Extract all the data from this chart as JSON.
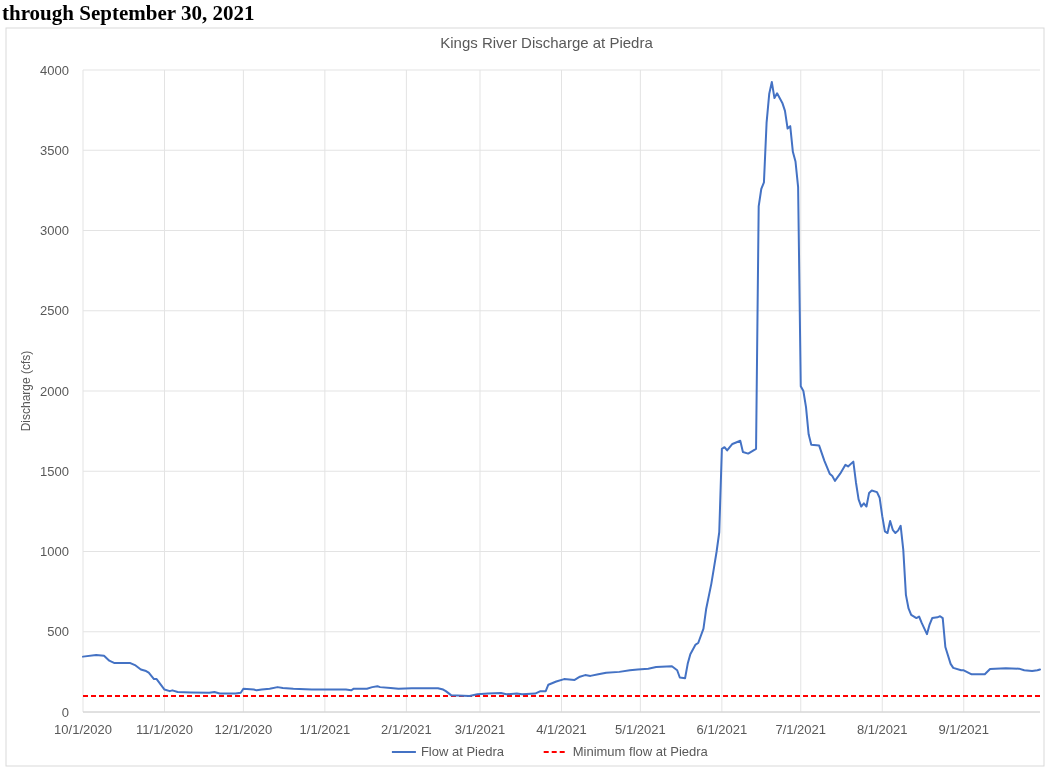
{
  "chart_data": {
    "type": "line",
    "title": "Kings River Discharge at Piedra",
    "ylabel": "Discharge (cfs)",
    "annotations": [
      "through September 30, 2021"
    ],
    "x": [
      "2020-10-01",
      "2020-10-06",
      "2020-10-09",
      "2020-10-11",
      "2020-10-13",
      "2020-10-19",
      "2020-10-21",
      "2020-10-23",
      "2020-10-25",
      "2020-10-26",
      "2020-10-28",
      "2020-10-29",
      "2020-11-01",
      "2020-11-03",
      "2020-11-04",
      "2020-11-06",
      "2020-11-11",
      "2020-11-18",
      "2020-11-20",
      "2020-11-22",
      "2020-11-28",
      "2020-11-30",
      "2020-12-01",
      "2020-12-05",
      "2020-12-06",
      "2020-12-08",
      "2020-12-11",
      "2020-12-14",
      "2020-12-16",
      "2020-12-20",
      "2020-12-27",
      "2021-01-09",
      "2021-01-11",
      "2021-01-12",
      "2021-01-17",
      "2021-01-19",
      "2021-01-21",
      "2021-01-22",
      "2021-01-26",
      "2021-01-29",
      "2021-02-03",
      "2021-02-13",
      "2021-02-15",
      "2021-02-16",
      "2021-02-18",
      "2021-02-25",
      "2021-02-28",
      "2021-03-04",
      "2021-03-09",
      "2021-03-11",
      "2021-03-15",
      "2021-03-17",
      "2021-03-22",
      "2021-03-24",
      "2021-03-26",
      "2021-03-27",
      "2021-03-30",
      "2021-04-02",
      "2021-04-06",
      "2021-04-08",
      "2021-04-10",
      "2021-04-12",
      "2021-04-15",
      "2021-04-18",
      "2021-04-23",
      "2021-04-27",
      "2021-04-30",
      "2021-05-04",
      "2021-05-07",
      "2021-05-13",
      "2021-05-15",
      "2021-05-16",
      "2021-05-18",
      "2021-05-19",
      "2021-05-20",
      "2021-05-22",
      "2021-05-23",
      "2021-05-25",
      "2021-05-26",
      "2021-05-28",
      "2021-05-29",
      "2021-05-30",
      "2021-05-31",
      "2021-06-01",
      "2021-06-02",
      "2021-06-03",
      "2021-06-05",
      "2021-06-08",
      "2021-06-09",
      "2021-06-11",
      "2021-06-14",
      "2021-06-15",
      "2021-06-16",
      "2021-06-17",
      "2021-06-18",
      "2021-06-19",
      "2021-06-20",
      "2021-06-21",
      "2021-06-22",
      "2021-06-24",
      "2021-06-25",
      "2021-06-26",
      "2021-06-27",
      "2021-06-28",
      "2021-06-29",
      "2021-06-30",
      "2021-07-01",
      "2021-07-02",
      "2021-07-03",
      "2021-07-04",
      "2021-07-05",
      "2021-07-08",
      "2021-07-10",
      "2021-07-12",
      "2021-07-13",
      "2021-07-14",
      "2021-07-16",
      "2021-07-18",
      "2021-07-19",
      "2021-07-21",
      "2021-07-22",
      "2021-07-23",
      "2021-07-24",
      "2021-07-25",
      "2021-07-26",
      "2021-07-27",
      "2021-07-28",
      "2021-07-30",
      "2021-07-31",
      "2021-08-01",
      "2021-08-02",
      "2021-08-03",
      "2021-08-04",
      "2021-08-05",
      "2021-08-06",
      "2021-08-07",
      "2021-08-08",
      "2021-08-09",
      "2021-08-10",
      "2021-08-11",
      "2021-08-12",
      "2021-08-14",
      "2021-08-15",
      "2021-08-16",
      "2021-08-18",
      "2021-08-19",
      "2021-08-20",
      "2021-08-22",
      "2021-08-23",
      "2021-08-24",
      "2021-08-25",
      "2021-08-27",
      "2021-08-28",
      "2021-08-31",
      "2021-09-01",
      "2021-09-04",
      "2021-09-09",
      "2021-09-11",
      "2021-09-17",
      "2021-09-22",
      "2021-09-24",
      "2021-09-27",
      "2021-09-29",
      "2021-09-30"
    ],
    "series": [
      {
        "name": "Flow at Piedra",
        "color": "#4472c4",
        "values": [
          345,
          355,
          350,
          320,
          305,
          305,
          290,
          265,
          255,
          245,
          205,
          205,
          140,
          130,
          135,
          125,
          122,
          120,
          125,
          115,
          115,
          120,
          145,
          140,
          135,
          140,
          145,
          155,
          150,
          145,
          140,
          140,
          135,
          145,
          145,
          155,
          160,
          155,
          150,
          145,
          148,
          148,
          140,
          130,
          105,
          100,
          110,
          115,
          118,
          110,
          115,
          110,
          115,
          130,
          130,
          170,
          190,
          205,
          200,
          220,
          230,
          225,
          235,
          245,
          250,
          260,
          265,
          270,
          280,
          285,
          260,
          215,
          210,
          300,
          360,
          420,
          430,
          520,
          640,
          800,
          900,
          1000,
          1120,
          1640,
          1650,
          1630,
          1670,
          1690,
          1620,
          1610,
          1640,
          3150,
          3260,
          3300,
          3670,
          3850,
          3925,
          3825,
          3855,
          3795,
          3745,
          3635,
          3650,
          3490,
          3430,
          3270,
          2030,
          2000,
          1900,
          1730,
          1665,
          1660,
          1565,
          1485,
          1470,
          1440,
          1485,
          1540,
          1530,
          1560,
          1430,
          1325,
          1280,
          1300,
          1280,
          1365,
          1380,
          1370,
          1335,
          1220,
          1125,
          1115,
          1190,
          1135,
          1115,
          1130,
          1160,
          1010,
          730,
          645,
          605,
          585,
          595,
          555,
          485,
          545,
          585,
          590,
          597,
          585,
          405,
          300,
          275,
          260,
          260,
          235,
          235,
          268,
          272,
          270,
          260,
          255,
          260,
          265
        ]
      }
    ],
    "ref_lines": [
      {
        "axis": "y",
        "value": 100,
        "label": "Minimum flow at Piedra",
        "color": "#ff0000",
        "line_style": "dashed"
      }
    ],
    "xlim": [
      "2020-10-01",
      "2021-09-30"
    ],
    "xticks": [
      {
        "value": "2020-10-01",
        "label": "10/1/2020"
      },
      {
        "value": "2020-11-01",
        "label": "11/1/2020"
      },
      {
        "value": "2020-12-01",
        "label": "12/1/2020"
      },
      {
        "value": "2021-01-01",
        "label": "1/1/2021"
      },
      {
        "value": "2021-02-01",
        "label": "2/1/2021"
      },
      {
        "value": "2021-03-01",
        "label": "3/1/2021"
      },
      {
        "value": "2021-04-01",
        "label": "4/1/2021"
      },
      {
        "value": "2021-05-01",
        "label": "5/1/2021"
      },
      {
        "value": "2021-06-01",
        "label": "6/1/2021"
      },
      {
        "value": "2021-07-01",
        "label": "7/1/2021"
      },
      {
        "value": "2021-08-01",
        "label": "8/1/2021"
      },
      {
        "value": "2021-09-01",
        "label": "9/1/2021"
      }
    ],
    "ylim": [
      0,
      4000
    ],
    "yticks": [
      0,
      500,
      1000,
      1500,
      2000,
      2500,
      3000,
      3500,
      4000
    ],
    "grid": true,
    "legend": "bottom"
  }
}
